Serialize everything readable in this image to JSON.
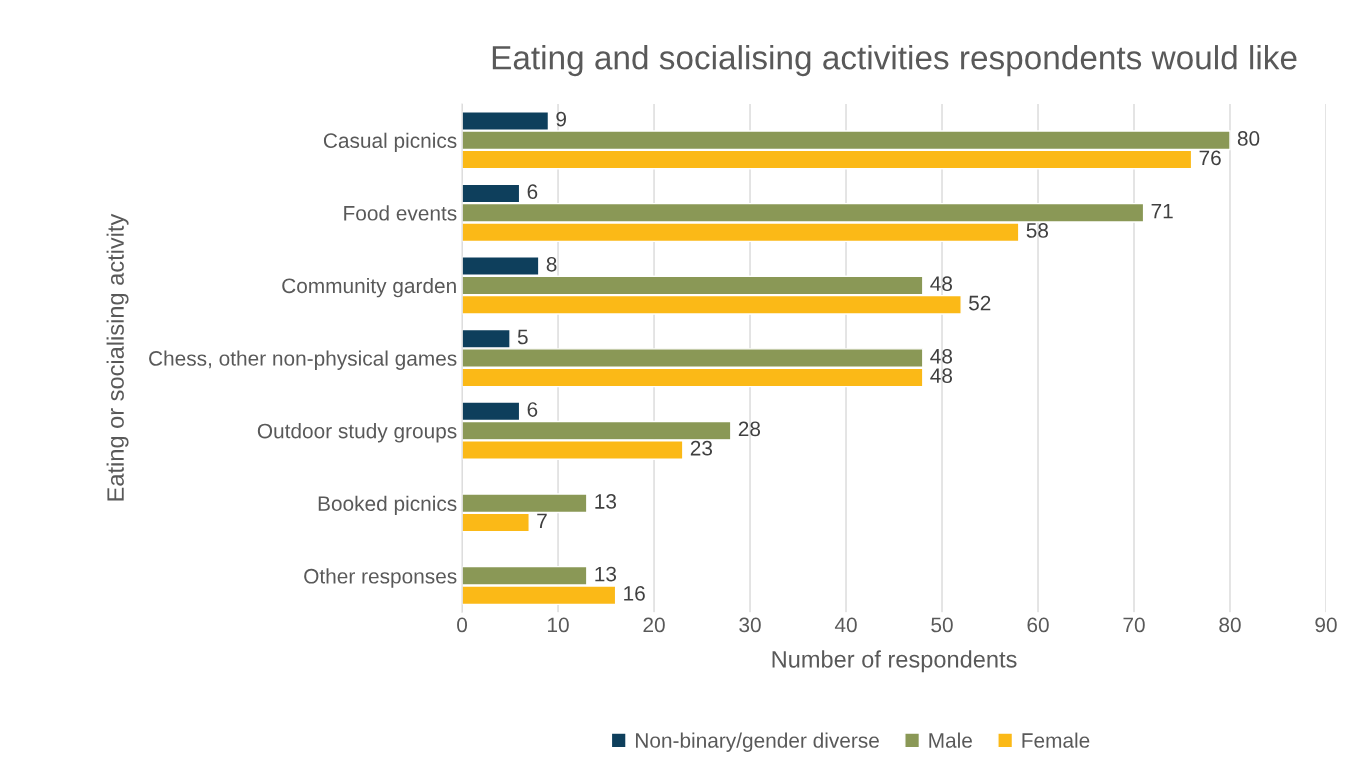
{
  "chart_data": {
    "type": "bar",
    "orientation": "horizontal",
    "title": "Eating and socialising activities respondents would like",
    "xlabel": "Number of respondents",
    "ylabel": "Eating or socialising activity",
    "categories": [
      "Casual picnics",
      "Food events",
      "Community garden",
      "Chess, other non-physical games",
      "Outdoor study groups",
      "Booked picnics",
      "Other responses"
    ],
    "series": [
      {
        "name": "Non-binary/gender diverse",
        "color": "#0e3f5c",
        "values": [
          9,
          6,
          8,
          5,
          6,
          null,
          null
        ]
      },
      {
        "name": "Male",
        "color": "#8a9856",
        "values": [
          80,
          71,
          48,
          48,
          28,
          13,
          13
        ]
      },
      {
        "name": "Female",
        "color": "#fbb917",
        "values": [
          76,
          58,
          52,
          48,
          23,
          7,
          16
        ]
      }
    ],
    "xlim": [
      0,
      90
    ],
    "xticks": [
      0,
      10,
      20,
      30,
      40,
      50,
      60,
      70,
      80,
      90
    ],
    "grid": "x",
    "legend": "bottom",
    "data_labels": true
  }
}
